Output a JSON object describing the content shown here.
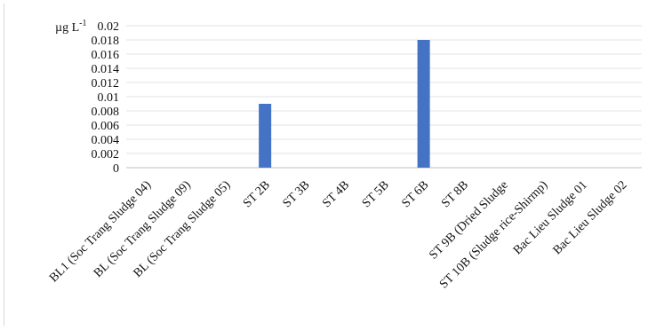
{
  "chart_data": {
    "type": "bar",
    "ylabel": "µg L",
    "ylabel_superscript": "-1",
    "ylim": [
      0,
      0.02
    ],
    "yticks": [
      "0.02",
      "0.018",
      "0.016",
      "0.014",
      "0.012",
      "0.01",
      "0.008",
      "0.006",
      "0.004",
      "0.002",
      "0"
    ],
    "grid": true,
    "categories": [
      "BL1 (Soc Trang Sludge 04)",
      "BL (Soc Trang Sludge 09)",
      "BL (Soc Trang Sludge 05)",
      "ST 2B",
      "ST 3B",
      "ST 4B",
      "ST 5B",
      "ST 6B",
      "ST 8B",
      "ST 9B (Dried Sludge",
      "ST 10B (Sludge rice-Shirmp)",
      "Bac Lieu Sludge 01",
      "Bac Lieu Sludge  02"
    ],
    "values": [
      0,
      0,
      0,
      0.009,
      0,
      0,
      0,
      0.018,
      0,
      0,
      0,
      0,
      0
    ],
    "bar_color": "#4472c4"
  }
}
